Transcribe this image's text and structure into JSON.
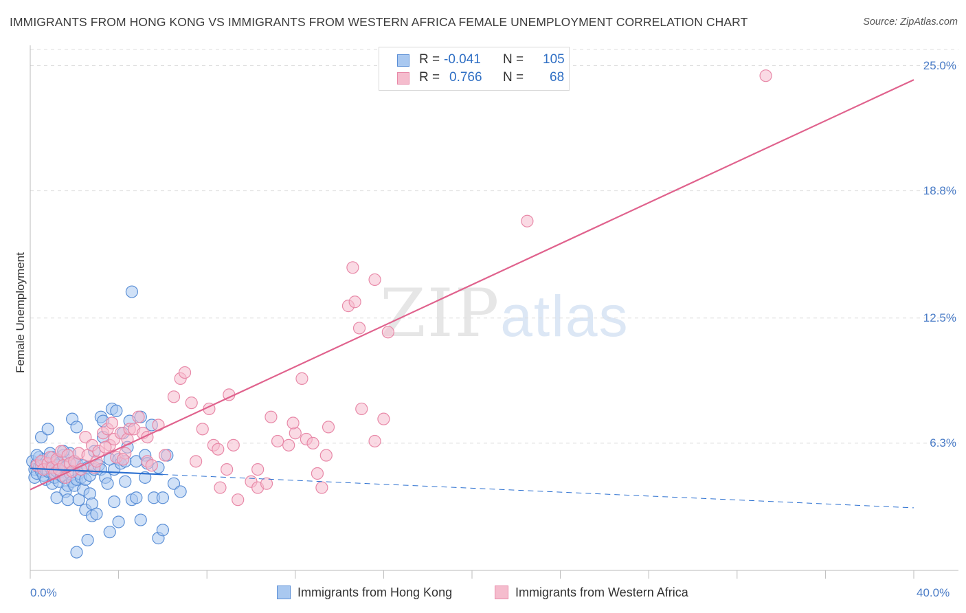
{
  "title": "IMMIGRANTS FROM HONG KONG VS IMMIGRANTS FROM WESTERN AFRICA FEMALE UNEMPLOYMENT CORRELATION CHART",
  "source": "Source: ZipAtlas.com",
  "watermark": {
    "zip": "ZIP",
    "atlas": "atlas"
  },
  "legend_top": {
    "rows": [
      {
        "r_label": "R =",
        "r_value": "-0.041",
        "n_label": "N =",
        "n_value": "105"
      },
      {
        "r_label": "R =",
        "r_value": "0.766",
        "n_label": "N =",
        "n_value": "68"
      }
    ]
  },
  "colors": {
    "hong_kong_fill": "#a9c8f0",
    "hong_kong_stroke": "#5b8fd6",
    "hong_kong_line": "#2a6fd0",
    "west_africa_fill": "#f5bccd",
    "west_africa_stroke": "#e889a8",
    "west_africa_line": "#e0628d",
    "grid": "#dddddd",
    "tick_text": "#4a7cc7"
  },
  "chart_data": {
    "type": "scatter",
    "title": "IMMIGRANTS FROM HONG KONG VS IMMIGRANTS FROM WESTERN AFRICA FEMALE UNEMPLOYMENT CORRELATION CHART",
    "xlabel": "",
    "ylabel": "Female Unemployment",
    "xlim": [
      0,
      40
    ],
    "ylim": [
      0,
      25.8
    ],
    "x_tick_labels": [
      "0.0%",
      "40.0%"
    ],
    "y_ticks": [
      6.3,
      12.5,
      18.8,
      25.0
    ],
    "y_tick_labels": [
      "6.3%",
      "12.5%",
      "18.8%",
      "25.0%"
    ],
    "grid": true,
    "legend": [
      "Immigrants from Hong Kong",
      "Immigrants from Western Africa"
    ],
    "series": [
      {
        "name": "Immigrants from Hong Kong",
        "r": -0.041,
        "n": 105,
        "trend": {
          "x_start": 0.0,
          "y_start": 5.05,
          "x_solid_end": 6.0,
          "y_solid_end": 4.75,
          "x_end": 40.0,
          "y_end": 3.1
        },
        "points": [
          [
            0.1,
            5.4
          ],
          [
            0.2,
            5.0
          ],
          [
            0.2,
            4.6
          ],
          [
            0.3,
            5.3
          ],
          [
            0.3,
            4.8
          ],
          [
            0.4,
            5.1
          ],
          [
            0.4,
            5.6
          ],
          [
            0.5,
            4.9
          ],
          [
            0.5,
            5.2
          ],
          [
            0.5,
            6.6
          ],
          [
            0.6,
            4.7
          ],
          [
            0.6,
            5.5
          ],
          [
            0.7,
            5.0
          ],
          [
            0.7,
            4.5
          ],
          [
            0.8,
            5.3
          ],
          [
            0.8,
            4.9
          ],
          [
            0.9,
            5.1
          ],
          [
            0.9,
            5.8
          ],
          [
            1.0,
            4.3
          ],
          [
            1.0,
            5.6
          ],
          [
            1.0,
            4.8
          ],
          [
            1.1,
            5.0
          ],
          [
            1.1,
            4.6
          ],
          [
            1.2,
            5.4
          ],
          [
            1.2,
            5.2
          ],
          [
            1.2,
            4.9
          ],
          [
            1.3,
            5.3
          ],
          [
            1.3,
            4.4
          ],
          [
            1.4,
            4.9
          ],
          [
            1.4,
            4.7
          ],
          [
            1.5,
            4.6
          ],
          [
            1.5,
            5.7
          ],
          [
            1.6,
            5.1
          ],
          [
            1.6,
            3.9
          ],
          [
            1.7,
            3.5
          ],
          [
            1.7,
            4.2
          ],
          [
            1.8,
            5.8
          ],
          [
            1.8,
            4.8
          ],
          [
            1.9,
            4.4
          ],
          [
            1.9,
            7.5
          ],
          [
            2.0,
            5.4
          ],
          [
            2.0,
            4.2
          ],
          [
            2.1,
            5.3
          ],
          [
            2.1,
            4.5
          ],
          [
            2.2,
            3.5
          ],
          [
            2.2,
            4.8
          ],
          [
            2.3,
            4.6
          ],
          [
            2.4,
            5.2
          ],
          [
            2.4,
            4.0
          ],
          [
            2.5,
            3.0
          ],
          [
            2.5,
            4.5
          ],
          [
            2.6,
            5.1
          ],
          [
            2.7,
            3.8
          ],
          [
            2.7,
            4.7
          ],
          [
            2.8,
            3.3
          ],
          [
            2.8,
            2.7
          ],
          [
            2.9,
            5.9
          ],
          [
            2.9,
            5.0
          ],
          [
            3.0,
            2.8
          ],
          [
            3.1,
            5.2
          ],
          [
            3.2,
            7.6
          ],
          [
            3.2,
            5.0
          ],
          [
            3.3,
            6.6
          ],
          [
            3.3,
            7.4
          ],
          [
            3.4,
            4.6
          ],
          [
            3.5,
            4.3
          ],
          [
            3.6,
            5.5
          ],
          [
            3.6,
            1.9
          ],
          [
            3.7,
            8.0
          ],
          [
            3.8,
            3.4
          ],
          [
            3.8,
            5.0
          ],
          [
            3.9,
            7.9
          ],
          [
            4.0,
            5.5
          ],
          [
            4.0,
            2.4
          ],
          [
            4.1,
            5.3
          ],
          [
            4.2,
            6.8
          ],
          [
            4.3,
            4.4
          ],
          [
            4.3,
            5.4
          ],
          [
            4.4,
            6.1
          ],
          [
            4.5,
            7.4
          ],
          [
            4.6,
            3.5
          ],
          [
            4.6,
            13.8
          ],
          [
            4.8,
            5.4
          ],
          [
            5.0,
            7.6
          ],
          [
            5.0,
            2.5
          ],
          [
            5.2,
            4.6
          ],
          [
            5.2,
            5.7
          ],
          [
            5.3,
            5.3
          ],
          [
            5.5,
            7.2
          ],
          [
            5.6,
            3.6
          ],
          [
            5.8,
            5.1
          ],
          [
            5.8,
            1.6
          ],
          [
            6.0,
            3.6
          ],
          [
            6.0,
            2.0
          ],
          [
            6.2,
            5.7
          ],
          [
            6.5,
            4.3
          ],
          [
            6.8,
            3.9
          ],
          [
            1.2,
            3.6
          ],
          [
            1.5,
            5.9
          ],
          [
            2.6,
            1.5
          ],
          [
            0.3,
            5.7
          ],
          [
            0.8,
            7.0
          ],
          [
            2.1,
            7.1
          ],
          [
            2.1,
            0.9
          ],
          [
            4.8,
            3.6
          ]
        ]
      },
      {
        "name": "Immigrants from Western Africa",
        "r": 0.766,
        "n": 68,
        "trend": {
          "x_start": 0.0,
          "y_start": 4.0,
          "x_end": 40.0,
          "y_end": 24.3
        },
        "points": [
          [
            0.3,
            5.2
          ],
          [
            0.5,
            5.4
          ],
          [
            0.6,
            5.0
          ],
          [
            0.8,
            5.3
          ],
          [
            0.9,
            5.6
          ],
          [
            1.0,
            5.1
          ],
          [
            1.1,
            4.8
          ],
          [
            1.2,
            5.5
          ],
          [
            1.3,
            5.0
          ],
          [
            1.4,
            5.9
          ],
          [
            1.5,
            5.2
          ],
          [
            1.6,
            4.6
          ],
          [
            1.7,
            5.7
          ],
          [
            1.8,
            5.3
          ],
          [
            1.9,
            4.9
          ],
          [
            2.0,
            5.4
          ],
          [
            2.2,
            5.8
          ],
          [
            2.3,
            5.0
          ],
          [
            2.5,
            6.6
          ],
          [
            2.6,
            5.7
          ],
          [
            2.8,
            6.2
          ],
          [
            2.9,
            5.1
          ],
          [
            3.0,
            5.4
          ],
          [
            3.1,
            5.9
          ],
          [
            3.3,
            6.8
          ],
          [
            3.5,
            7.0
          ],
          [
            3.6,
            6.2
          ],
          [
            3.7,
            7.3
          ],
          [
            3.8,
            6.5
          ],
          [
            3.9,
            5.6
          ],
          [
            4.1,
            6.8
          ],
          [
            4.3,
            5.8
          ],
          [
            4.4,
            6.5
          ],
          [
            4.5,
            7.0
          ],
          [
            4.7,
            7.0
          ],
          [
            4.9,
            7.6
          ],
          [
            5.1,
            6.8
          ],
          [
            5.3,
            5.4
          ],
          [
            5.5,
            5.2
          ],
          [
            5.8,
            7.2
          ],
          [
            6.1,
            5.7
          ],
          [
            6.5,
            8.6
          ],
          [
            6.8,
            9.5
          ],
          [
            7.0,
            9.8
          ],
          [
            7.3,
            8.3
          ],
          [
            7.5,
            5.4
          ],
          [
            7.8,
            7.0
          ],
          [
            8.1,
            8.0
          ],
          [
            8.3,
            6.2
          ],
          [
            8.6,
            4.1
          ],
          [
            8.9,
            5.0
          ],
          [
            9.0,
            8.7
          ],
          [
            9.2,
            6.2
          ],
          [
            9.4,
            3.5
          ],
          [
            10.0,
            4.4
          ],
          [
            10.3,
            4.1
          ],
          [
            10.7,
            4.3
          ],
          [
            11.2,
            6.4
          ],
          [
            11.7,
            6.2
          ],
          [
            12.0,
            6.8
          ],
          [
            12.3,
            9.5
          ],
          [
            12.5,
            6.5
          ],
          [
            13.0,
            4.8
          ],
          [
            13.5,
            7.1
          ],
          [
            15.0,
            8.0
          ],
          [
            16.2,
            11.8
          ],
          [
            22.5,
            17.3
          ],
          [
            33.3,
            24.5
          ]
        ]
      }
    ],
    "extra_points_western_africa_note": "",
    "extra_points_western_africa": [
      [
        10.9,
        7.6
      ],
      [
        11.9,
        7.3
      ],
      [
        13.2,
        4.1
      ],
      [
        10.3,
        5.0
      ],
      [
        14.6,
        15.0
      ],
      [
        15.6,
        14.4
      ],
      [
        14.4,
        13.1
      ],
      [
        14.9,
        12.0
      ],
      [
        14.7,
        13.3
      ],
      [
        16.0,
        7.5
      ],
      [
        15.6,
        6.4
      ],
      [
        12.8,
        6.3
      ],
      [
        13.4,
        5.7
      ],
      [
        8.5,
        6.0
      ],
      [
        5.3,
        6.6
      ],
      [
        4.2,
        5.5
      ],
      [
        3.4,
        6.1
      ]
    ]
  },
  "legend_bottom": {
    "hong_kong_label": "Immigrants from Hong Kong",
    "west_africa_label": "Immigrants from Western Africa"
  }
}
